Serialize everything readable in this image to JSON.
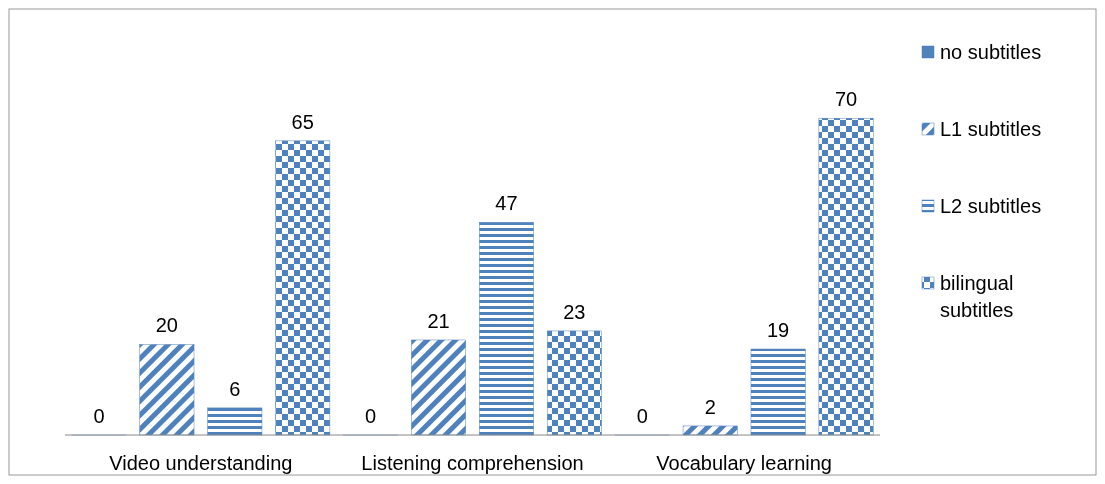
{
  "chart_data": {
    "type": "bar",
    "categories": [
      "Video understanding",
      "Listening comprehension",
      "Vocabulary learning"
    ],
    "series": [
      {
        "name": "no subtitles",
        "color": "#4f81bd",
        "values": [
          0,
          0,
          0
        ]
      },
      {
        "name": "L1 subtitles",
        "color": "#4f81bd",
        "values": [
          20,
          21,
          2
        ]
      },
      {
        "name": "L2 subtitles",
        "color": "#4f81bd",
        "values": [
          6,
          47,
          19
        ]
      },
      {
        "name": "bilingual subtitles",
        "color": "#4f81bd",
        "values": [
          65,
          23,
          70
        ]
      }
    ],
    "data_labels": true,
    "legend": "right"
  }
}
